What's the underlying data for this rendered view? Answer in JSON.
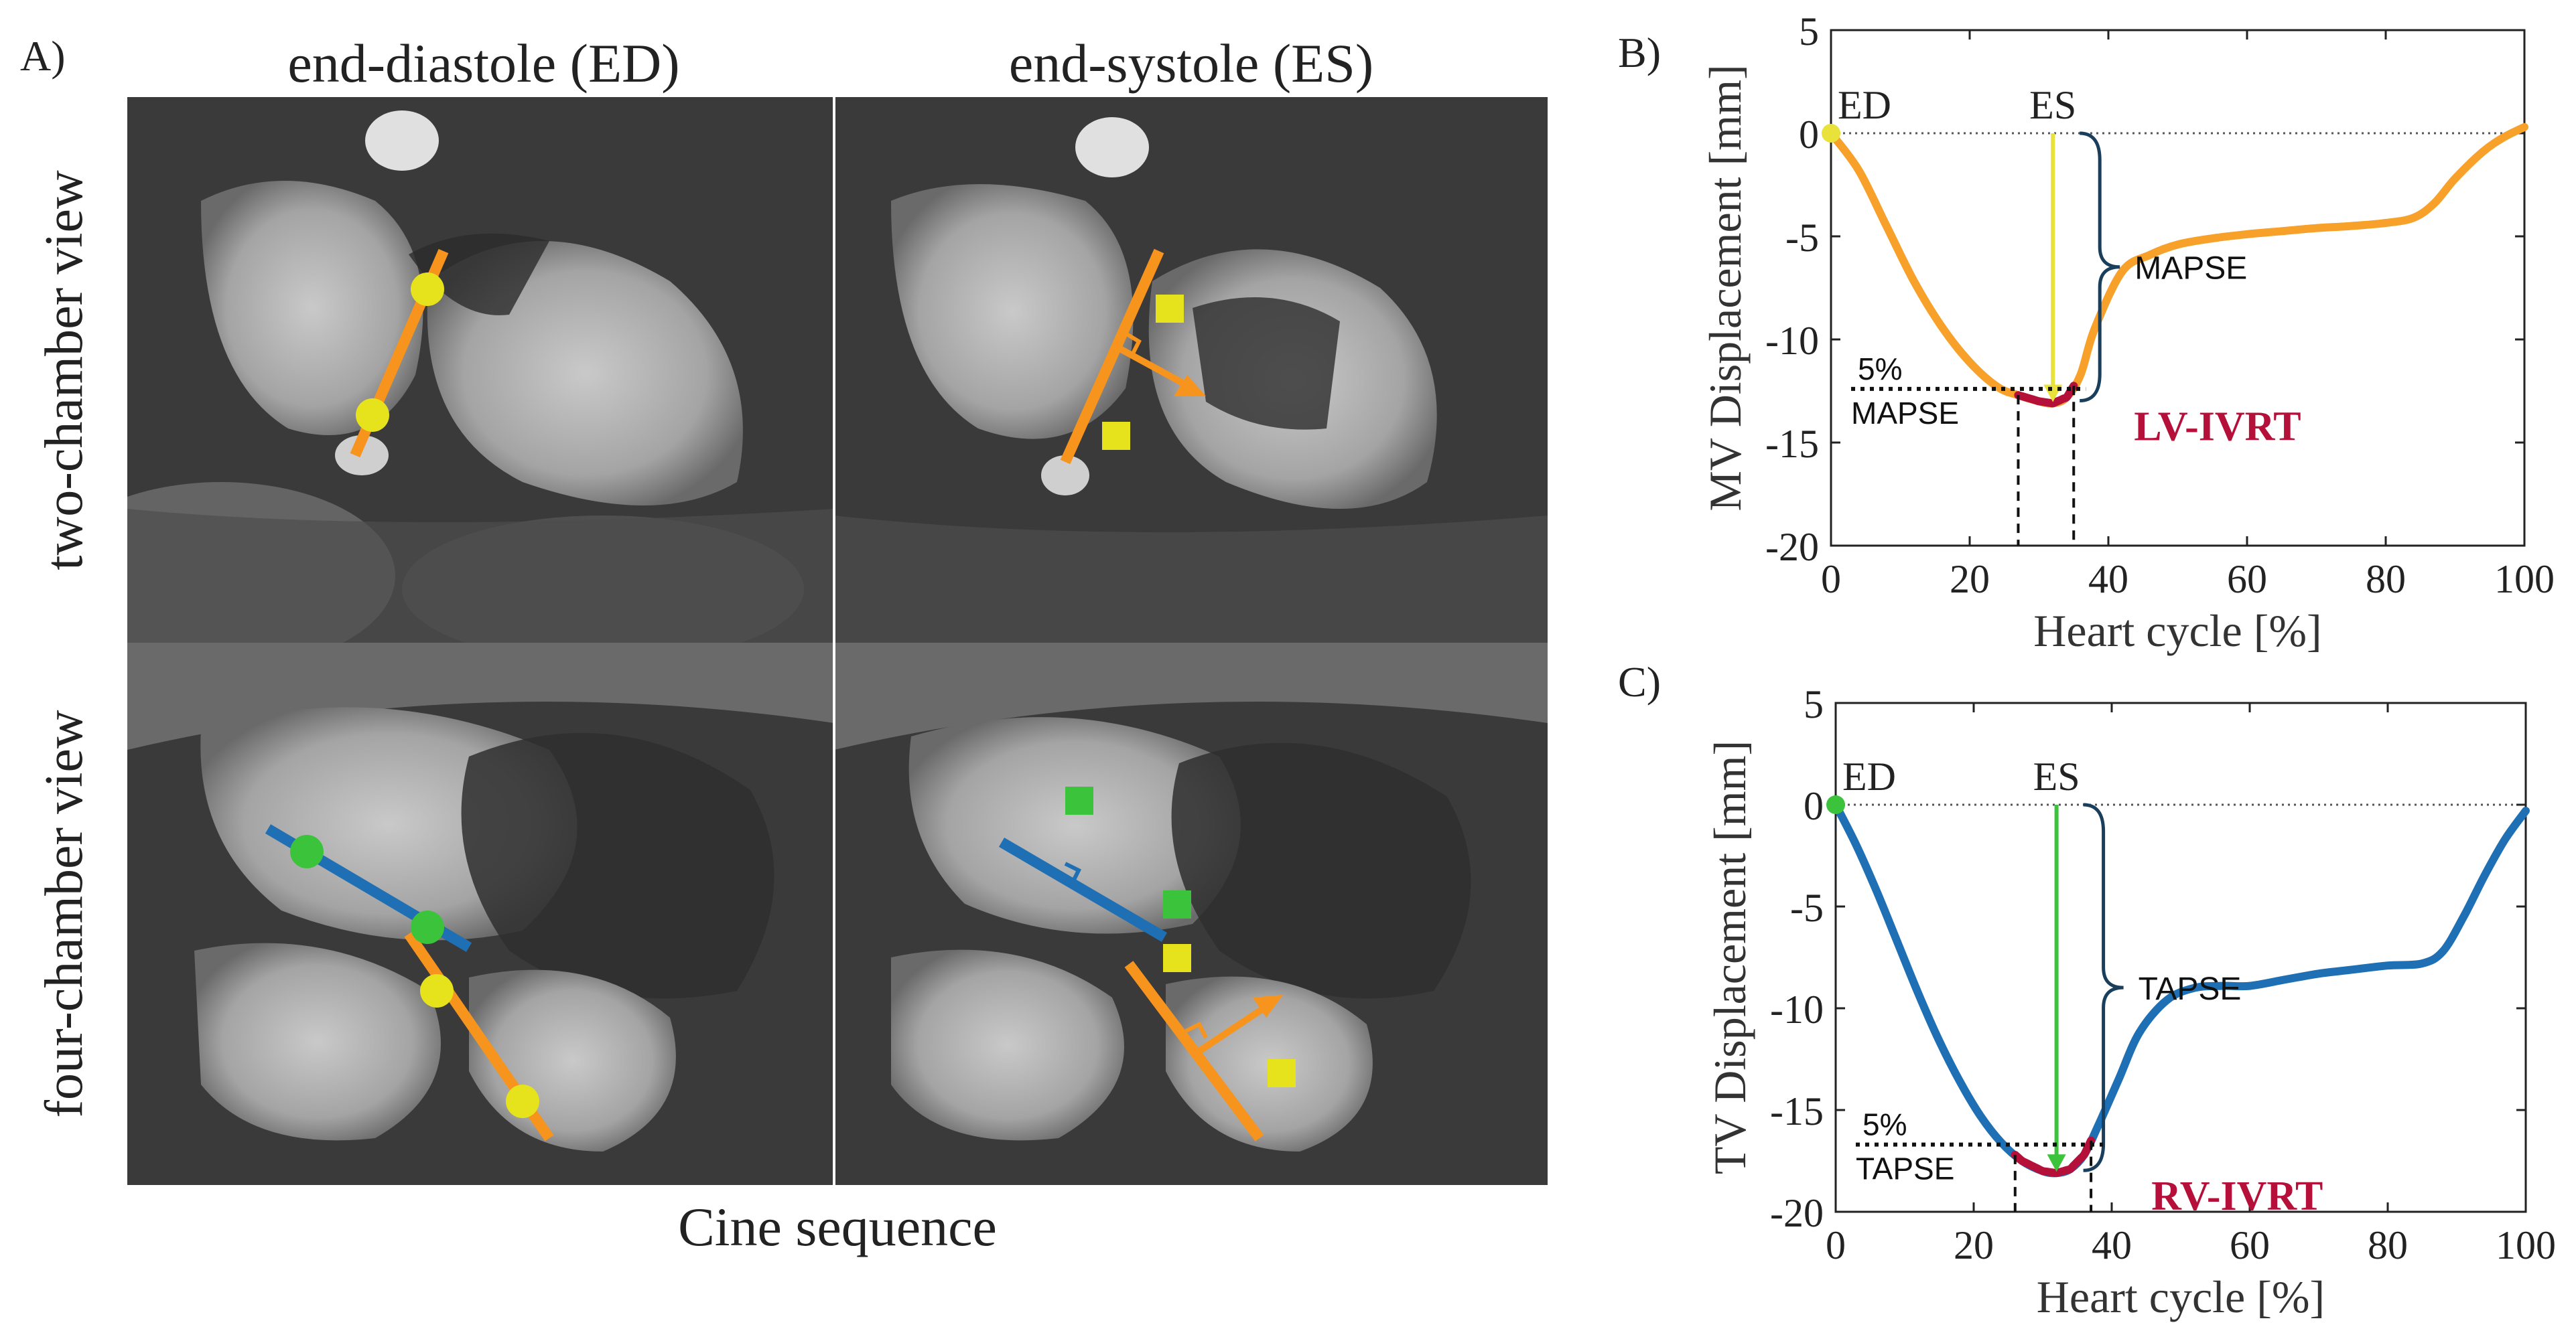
{
  "panel_a": {
    "label": "A)",
    "col_headers": [
      "end-diastole (ED)",
      "end-systole (ES)"
    ],
    "row_labels": [
      "two-chamber view",
      "four-chamber view"
    ],
    "footer": "Cine sequence"
  },
  "chart_data": [
    {
      "type": "line",
      "panel_label": "B)",
      "title": "",
      "xlabel": "Heart cycle [%]",
      "ylabel": "MV Displacement [mm]",
      "xlim": [
        0,
        100
      ],
      "ylim": [
        -20,
        5
      ],
      "xticks": [
        0,
        20,
        40,
        60,
        80,
        100
      ],
      "yticks": [
        5,
        0,
        -5,
        -10,
        -15,
        -20
      ],
      "grid": false,
      "series": [
        {
          "color": "#F7A02A",
          "x": [
            0,
            4,
            8,
            12,
            16,
            20,
            24,
            27,
            30,
            32,
            34,
            36,
            38,
            42,
            46,
            50,
            55,
            60,
            65,
            70,
            75,
            80,
            84,
            87,
            90,
            94,
            97,
            100
          ],
          "y": [
            0,
            -1.8,
            -4.5,
            -7.2,
            -9.4,
            -11.1,
            -12.3,
            -12.7,
            -13.0,
            -13.1,
            -12.8,
            -11.7,
            -9.5,
            -6.7,
            -5.9,
            -5.4,
            -5.1,
            -4.9,
            -4.75,
            -4.6,
            -4.5,
            -4.35,
            -4.1,
            -3.4,
            -2.2,
            -0.9,
            -0.2,
            0.3
          ]
        }
      ],
      "highlight": {
        "color": "#B5103A",
        "x_range": [
          27,
          35
        ]
      },
      "annotations": {
        "ed_label": "ED",
        "ed_marker_color": "#E8E23A",
        "es_label": "ES",
        "es_x": 32,
        "es_arrow_color": "#E8E23A",
        "brace_label": "MAPSE",
        "threshold_label_top": "5%",
        "threshold_label_bottom": "MAPSE",
        "threshold_y": -12.4,
        "dashed_x": [
          27,
          35
        ],
        "ivrt_label": "LV-IVRT"
      }
    },
    {
      "type": "line",
      "panel_label": "C)",
      "title": "",
      "xlabel": "Heart cycle [%]",
      "ylabel": "TV Displacement [mm]",
      "xlim": [
        0,
        100
      ],
      "ylim": [
        -20,
        5
      ],
      "xticks": [
        0,
        20,
        40,
        60,
        80,
        100
      ],
      "yticks": [
        5,
        0,
        -5,
        -10,
        -15,
        -20
      ],
      "grid": false,
      "series": [
        {
          "color": "#1F6FB4",
          "x": [
            0,
            3,
            6,
            9,
            12,
            15,
            18,
            21,
            24,
            27,
            30,
            32,
            34,
            36,
            38,
            41,
            44,
            48,
            52,
            56,
            60,
            65,
            70,
            75,
            80,
            85,
            88,
            91,
            94,
            97,
            100
          ],
          "y": [
            0,
            -2.0,
            -4.3,
            -6.8,
            -9.3,
            -11.6,
            -13.6,
            -15.3,
            -16.6,
            -17.5,
            -18.0,
            -18.1,
            -17.9,
            -17.2,
            -15.8,
            -13.5,
            -11.2,
            -9.6,
            -9.0,
            -8.9,
            -8.9,
            -8.6,
            -8.3,
            -8.1,
            -7.9,
            -7.8,
            -7.2,
            -5.5,
            -3.5,
            -1.7,
            -0.3
          ]
        }
      ],
      "highlight": {
        "color": "#B5103A",
        "x_range": [
          26,
          37
        ]
      },
      "annotations": {
        "ed_label": "ED",
        "ed_marker_color": "#3CC33C",
        "es_label": "ES",
        "es_x": 32,
        "es_arrow_color": "#3CC33C",
        "brace_label": "TAPSE",
        "threshold_label_top": "5%",
        "threshold_label_bottom": "TAPSE",
        "threshold_y": -16.7,
        "dashed_x": [
          26,
          37
        ],
        "ivrt_label": "RV-IVRT"
      }
    }
  ]
}
